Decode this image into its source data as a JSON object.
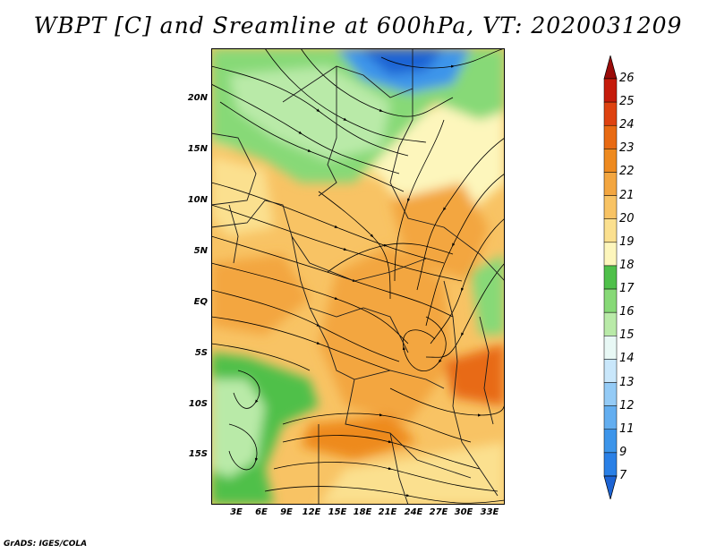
{
  "title": "WBPT [C] and Sreamline at 600hPa, VT: 2020031209",
  "footer": "GrADS: IGES/COLA",
  "lat_labels": [
    "20N",
    "15N",
    "10N",
    "5N",
    "EQ",
    "5S",
    "10S",
    "15S"
  ],
  "lon_labels": [
    "3E",
    "6E",
    "9E",
    "12E",
    "15E",
    "18E",
    "21E",
    "24E",
    "27E",
    "30E",
    "33E"
  ],
  "colorbar": {
    "labels": [
      "7",
      "9",
      "11",
      "12",
      "13",
      "14",
      "15",
      "16",
      "17",
      "18",
      "19",
      "20",
      "21",
      "22",
      "23",
      "24",
      "25",
      "26"
    ],
    "colors": [
      "#1d64d4",
      "#2a80e6",
      "#3d95ea",
      "#63aef0",
      "#94cbf6",
      "#c9e7fb",
      "#e8f8f5",
      "#b9eaa8",
      "#87d977",
      "#4fc04a",
      "#fdf6bc",
      "#fbe08f",
      "#f8c364",
      "#f3a640",
      "#ee8a1f",
      "#e86a13",
      "#de4210",
      "#c51b0b",
      "#9a0b09"
    ]
  }
}
